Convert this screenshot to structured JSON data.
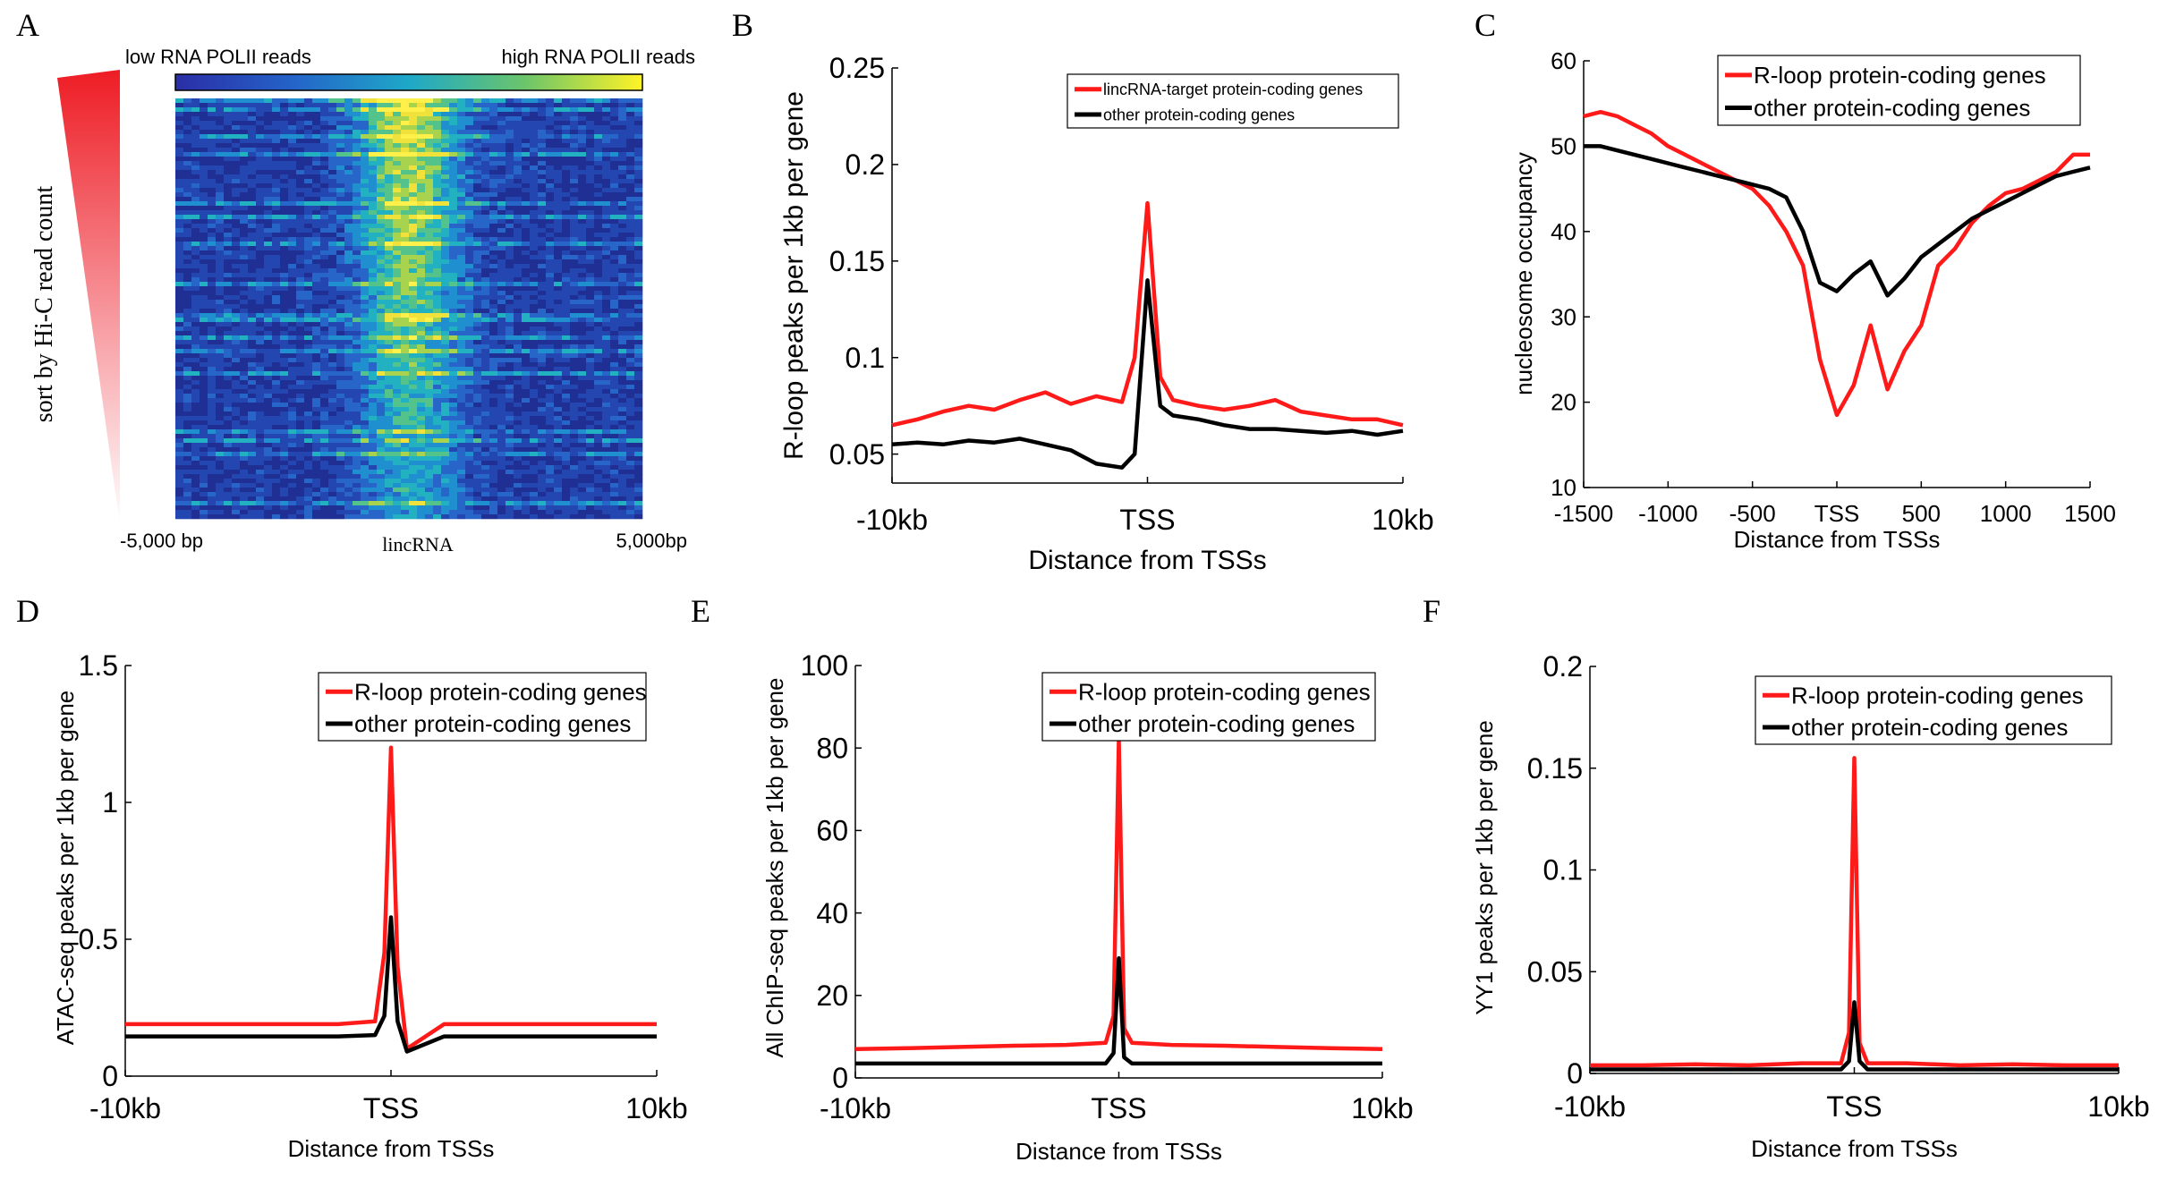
{
  "colors": {
    "red": "#ff1a1a",
    "black": "#000000"
  },
  "panel_a": {
    "label": "A",
    "colorbar_low": "low RNA POLII reads",
    "colorbar_high": "high RNA POLII reads",
    "sort_label": "sort by Hi-C read count",
    "x_left": "-5,000 bp",
    "x_center": "lincRNA",
    "x_right": "5,000bp"
  },
  "chart_data": [
    {
      "panel": "B",
      "type": "line",
      "xlabel": "Distance from TSSs",
      "ylabel": "R-loop peaks per 1kb per gene",
      "xlim": [
        -10,
        10
      ],
      "ylim": [
        0.035,
        0.25
      ],
      "x_ticks": [
        "-10kb",
        "TSS",
        "10kb"
      ],
      "y_ticks": [
        "0.05",
        "0.1",
        "0.15",
        "0.2",
        "0.25"
      ],
      "legend_position": "top-right",
      "series": [
        {
          "name": "lincRNA-target protein-coding genes",
          "color": "#ff1a1a",
          "x": [
            -10,
            -9,
            -8,
            -7,
            -6,
            -5,
            -4,
            -3,
            -2,
            -1,
            -0.5,
            0,
            0.5,
            1,
            2,
            3,
            4,
            5,
            6,
            7,
            8,
            9,
            10
          ],
          "y": [
            0.065,
            0.068,
            0.072,
            0.075,
            0.073,
            0.078,
            0.082,
            0.076,
            0.08,
            0.077,
            0.1,
            0.18,
            0.09,
            0.078,
            0.075,
            0.073,
            0.075,
            0.078,
            0.072,
            0.07,
            0.068,
            0.068,
            0.065
          ]
        },
        {
          "name": "other protein-coding genes",
          "color": "#000000",
          "x": [
            -10,
            -9,
            -8,
            -7,
            -6,
            -5,
            -4,
            -3,
            -2,
            -1,
            -0.5,
            0,
            0.5,
            1,
            2,
            3,
            4,
            5,
            6,
            7,
            8,
            9,
            10
          ],
          "y": [
            0.055,
            0.056,
            0.055,
            0.057,
            0.056,
            0.058,
            0.055,
            0.052,
            0.045,
            0.043,
            0.05,
            0.14,
            0.075,
            0.07,
            0.068,
            0.065,
            0.063,
            0.063,
            0.062,
            0.061,
            0.062,
            0.06,
            0.062
          ]
        }
      ]
    },
    {
      "panel": "C",
      "type": "line",
      "xlabel": "Distance from TSSs",
      "ylabel": "nucleosome occupancy",
      "xlim": [
        -1500,
        1500
      ],
      "ylim": [
        10,
        60
      ],
      "x_ticks": [
        "-1500",
        "-1000",
        "-500",
        "TSS",
        "500",
        "1000",
        "1500"
      ],
      "y_ticks": [
        "10",
        "20",
        "30",
        "40",
        "50",
        "60"
      ],
      "legend_position": "top-right",
      "series": [
        {
          "name": "R-loop protein-coding genes",
          "color": "#ff1a1a",
          "x": [
            -1500,
            -1400,
            -1300,
            -1200,
            -1100,
            -1000,
            -900,
            -800,
            -700,
            -600,
            -500,
            -400,
            -300,
            -200,
            -100,
            0,
            100,
            200,
            300,
            400,
            500,
            600,
            700,
            800,
            900,
            1000,
            1100,
            1200,
            1300,
            1400,
            1500
          ],
          "y": [
            53.5,
            54,
            53.5,
            52.5,
            51.5,
            50,
            49,
            48,
            47,
            46,
            45,
            43,
            40,
            36,
            25,
            18.5,
            22,
            29,
            21.5,
            26,
            29,
            36,
            38,
            41,
            43,
            44.5,
            45,
            46,
            47,
            49,
            49
          ]
        },
        {
          "name": "other protein-coding genes",
          "color": "#000000",
          "x": [
            -1500,
            -1400,
            -1300,
            -1200,
            -1100,
            -1000,
            -900,
            -800,
            -700,
            -600,
            -500,
            -400,
            -300,
            -200,
            -100,
            0,
            100,
            200,
            300,
            400,
            500,
            600,
            700,
            800,
            900,
            1000,
            1100,
            1200,
            1300,
            1400,
            1500
          ],
          "y": [
            50,
            50,
            49.5,
            49,
            48.5,
            48,
            47.5,
            47,
            46.5,
            46,
            45.5,
            45,
            44,
            40,
            34,
            33,
            35,
            36.5,
            32.5,
            34.5,
            37,
            38.5,
            40,
            41.5,
            42.5,
            43.5,
            44.5,
            45.5,
            46.5,
            47,
            47.5
          ]
        }
      ]
    },
    {
      "panel": "D",
      "type": "line",
      "xlabel": "Distance from TSSs",
      "ylabel": "ATAC-seq peaks per 1kb per gene",
      "xlim": [
        -10,
        10
      ],
      "ylim": [
        0,
        1.5
      ],
      "x_ticks": [
        "-10kb",
        "TSS",
        "10kb"
      ],
      "y_ticks": [
        "0",
        "0.5",
        "1",
        "1.5"
      ],
      "legend_position": "top-right",
      "series": [
        {
          "name": "R-loop protein-coding genes",
          "color": "#ff1a1a",
          "x": [
            -10,
            -8,
            -6,
            -4,
            -2,
            -0.6,
            -0.25,
            0,
            0.25,
            0.6,
            2,
            4,
            6,
            8,
            10
          ],
          "y": [
            0.19,
            0.19,
            0.19,
            0.19,
            0.19,
            0.2,
            0.45,
            1.2,
            0.4,
            0.1,
            0.19,
            0.19,
            0.19,
            0.19,
            0.19
          ]
        },
        {
          "name": "other protein-coding genes",
          "color": "#000000",
          "x": [
            -10,
            -8,
            -6,
            -4,
            -2,
            -0.6,
            -0.25,
            0,
            0.25,
            0.6,
            2,
            4,
            6,
            8,
            10
          ],
          "y": [
            0.145,
            0.145,
            0.145,
            0.145,
            0.145,
            0.15,
            0.22,
            0.58,
            0.2,
            0.09,
            0.145,
            0.145,
            0.145,
            0.145,
            0.145
          ]
        }
      ]
    },
    {
      "panel": "E",
      "type": "line",
      "xlabel": "Distance from TSSs",
      "ylabel": "All ChIP-seq peaks per 1kb per gene",
      "xlim": [
        -10,
        10
      ],
      "ylim": [
        0,
        100
      ],
      "x_ticks": [
        "-10kb",
        "TSS",
        "10kb"
      ],
      "y_ticks": [
        "0",
        "20",
        "40",
        "60",
        "80",
        "100"
      ],
      "legend_position": "top-right",
      "series": [
        {
          "name": "R-loop protein-coding genes",
          "color": "#ff1a1a",
          "x": [
            -10,
            -8,
            -6,
            -4,
            -2,
            -0.5,
            -0.2,
            0,
            0.2,
            0.5,
            2,
            4,
            6,
            8,
            10
          ],
          "y": [
            7,
            7.2,
            7.5,
            7.8,
            8,
            8.5,
            15,
            82,
            12,
            8.5,
            8,
            7.8,
            7.5,
            7.2,
            7
          ]
        },
        {
          "name": "other protein-coding genes",
          "color": "#000000",
          "x": [
            -10,
            -8,
            -6,
            -4,
            -2,
            -0.5,
            -0.2,
            0,
            0.2,
            0.5,
            2,
            4,
            6,
            8,
            10
          ],
          "y": [
            3.5,
            3.5,
            3.5,
            3.5,
            3.5,
            3.5,
            6,
            29,
            5,
            3.5,
            3.5,
            3.5,
            3.5,
            3.5,
            3.5
          ]
        }
      ]
    },
    {
      "panel": "F",
      "type": "line",
      "xlabel": "Distance from TSSs",
      "ylabel": "YY1 peaks per 1kb per gene",
      "xlim": [
        -10,
        10
      ],
      "ylim": [
        0,
        0.2
      ],
      "x_ticks": [
        "-10kb",
        "TSS",
        "10kb"
      ],
      "y_ticks": [
        "0",
        "0.05",
        "0.1",
        "0.15",
        "0.2"
      ],
      "legend_position": "top-right",
      "series": [
        {
          "name": "R-loop protein-coding genes",
          "color": "#ff1a1a",
          "x": [
            -10,
            -8,
            -6,
            -4,
            -2,
            -0.5,
            -0.2,
            0,
            0.2,
            0.5,
            2,
            4,
            6,
            8,
            10
          ],
          "y": [
            0.004,
            0.004,
            0.0045,
            0.004,
            0.005,
            0.005,
            0.02,
            0.155,
            0.015,
            0.005,
            0.005,
            0.004,
            0.0045,
            0.004,
            0.004
          ]
        },
        {
          "name": "other protein-coding genes",
          "color": "#000000",
          "x": [
            -10,
            -8,
            -6,
            -4,
            -2,
            -0.5,
            -0.2,
            0,
            0.2,
            0.5,
            2,
            4,
            6,
            8,
            10
          ],
          "y": [
            0.002,
            0.002,
            0.002,
            0.002,
            0.002,
            0.002,
            0.006,
            0.035,
            0.006,
            0.002,
            0.002,
            0.002,
            0.002,
            0.002,
            0.002
          ]
        }
      ]
    }
  ]
}
